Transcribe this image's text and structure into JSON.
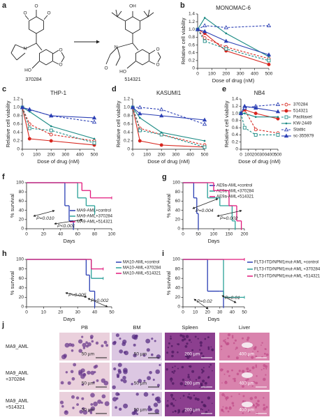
{
  "structures": {
    "panel": "a",
    "molecules": [
      {
        "label": "370284",
        "atoms": [
          "O",
          "O",
          "O",
          "N",
          "HO",
          "O",
          "O"
        ]
      },
      {
        "label": "514321",
        "atoms": [
          "OH",
          "N",
          "O",
          "HO",
          "O",
          "O"
        ]
      }
    ]
  },
  "chart_data": [
    {
      "type": "line",
      "panel": "b",
      "title": "MONOMAC-6",
      "xlabel": "Dose of drug (nM)",
      "ylabel": "Relative cell viability",
      "x": [
        0,
        50,
        200,
        500
      ],
      "xlim": [
        0,
        500
      ],
      "xticks": [
        0,
        100,
        200,
        300,
        400,
        500
      ],
      "ylim": [
        0,
        1.4
      ],
      "yticks": [
        0,
        0.2,
        0.4,
        0.6,
        0.8,
        {
          "value": 1,
          "label": "1.0"
        },
        1.2,
        1.4
      ],
      "series": [
        {
          "color": "#d7261e",
          "linestyle": "dashed",
          "marker": "circle",
          "filled": false,
          "values": [
            1.0,
            0.78,
            0.55,
            0.25
          ]
        },
        {
          "color": "#d7261e",
          "linestyle": "solid",
          "marker": "circle",
          "filled": true,
          "values": [
            1.0,
            0.9,
            0.45,
            0.1
          ]
        },
        {
          "color": "#1b8a84",
          "linestyle": "dashed",
          "marker": "square",
          "filled": false,
          "values": [
            1.0,
            0.7,
            0.5,
            0.2
          ]
        },
        {
          "color": "#1b8a84",
          "linestyle": "solid",
          "marker": "none",
          "filled": true,
          "values": [
            1.0,
            1.3,
            0.9,
            0.3
          ]
        },
        {
          "color": "#2b3fb4",
          "linestyle": "dashed",
          "marker": "triangle",
          "filled": false,
          "values": [
            1.0,
            1.1,
            1.05,
            1.1
          ]
        },
        {
          "color": "#2b3fb4",
          "linestyle": "solid",
          "marker": "triangle",
          "filled": true,
          "values": [
            1.0,
            0.95,
            0.7,
            0.35
          ]
        }
      ]
    },
    {
      "type": "line",
      "panel": "c",
      "title": "THP-1",
      "xlabel": "Dose of drug (nM)",
      "ylabel": "Relative cell viability",
      "x": [
        0,
        50,
        200,
        500
      ],
      "xlim": [
        0,
        500
      ],
      "xticks": [
        0,
        100,
        200,
        300,
        400,
        500
      ],
      "ylim": [
        0,
        1.2
      ],
      "yticks": [
        0,
        0.2,
        0.4,
        0.6,
        0.8,
        {
          "value": 1,
          "label": "1.0"
        },
        1.2
      ],
      "series": [
        {
          "color": "#d7261e",
          "linestyle": "dashed",
          "marker": "circle",
          "filled": false,
          "values": [
            1.0,
            0.6,
            0.35,
            0.2
          ]
        },
        {
          "color": "#d7261e",
          "linestyle": "solid",
          "marker": "circle",
          "filled": true,
          "values": [
            1.0,
            0.25,
            0.2,
            0.1
          ]
        },
        {
          "color": "#1b8a84",
          "linestyle": "dashed",
          "marker": "square",
          "filled": false,
          "values": [
            1.0,
            0.5,
            0.45,
            0.15
          ]
        },
        {
          "color": "#1b8a84",
          "linestyle": "solid",
          "marker": "none",
          "filled": true,
          "values": [
            1.0,
            0.9,
            0.55,
            0.25
          ]
        },
        {
          "color": "#2b3fb4",
          "linestyle": "dashed",
          "marker": "triangle",
          "filled": false,
          "values": [
            1.0,
            0.95,
            0.8,
            0.65
          ]
        },
        {
          "color": "#2b3fb4",
          "linestyle": "solid",
          "marker": "triangle",
          "filled": true,
          "values": [
            1.0,
            0.95,
            0.8,
            0.75
          ]
        }
      ]
    },
    {
      "type": "line",
      "panel": "d",
      "title": "KASUMI1",
      "xlabel": "Dose of drug (nM)",
      "ylabel": "Relative cell viability",
      "x": [
        0,
        50,
        200,
        500
      ],
      "xlim": [
        0,
        500
      ],
      "xticks": [
        0,
        100,
        200,
        300,
        400,
        500
      ],
      "ylim": [
        0,
        1.2
      ],
      "yticks": [
        0,
        0.2,
        0.4,
        0.6,
        0.8,
        {
          "value": 1,
          "label": "1.0"
        },
        1.2
      ],
      "series": [
        {
          "color": "#d7261e",
          "linestyle": "dashed",
          "marker": "circle",
          "filled": false,
          "values": [
            1.0,
            0.5,
            0.35,
            0.1
          ]
        },
        {
          "color": "#d7261e",
          "linestyle": "solid",
          "marker": "circle",
          "filled": true,
          "values": [
            1.0,
            0.2,
            0.1,
            0.05
          ]
        },
        {
          "color": "#1b8a84",
          "linestyle": "dashed",
          "marker": "square",
          "filled": false,
          "values": [
            1.0,
            0.45,
            0.35,
            0.05
          ]
        },
        {
          "color": "#1b8a84",
          "linestyle": "solid",
          "marker": "none",
          "filled": true,
          "values": [
            1.0,
            0.75,
            0.4,
            0.2
          ]
        },
        {
          "color": "#2b3fb4",
          "linestyle": "dashed",
          "marker": "triangle",
          "filled": false,
          "values": [
            1.0,
            1.0,
            0.95,
            0.6
          ]
        },
        {
          "color": "#2b3fb4",
          "linestyle": "solid",
          "marker": "triangle",
          "filled": true,
          "values": [
            1.0,
            0.85,
            0.8,
            0.7
          ]
        }
      ]
    },
    {
      "type": "line",
      "panel": "e",
      "title": "NB4",
      "xlabel": "Dose of drug (nM)",
      "ylabel": "Relative cell viability",
      "x": [
        0,
        50,
        200,
        500
      ],
      "xlim": [
        0,
        500
      ],
      "xticks": [
        0,
        100,
        200,
        300,
        400,
        500
      ],
      "ylim": [
        0,
        1.4
      ],
      "yticks": [
        0,
        0.2,
        0.4,
        0.6,
        0.8,
        {
          "value": 1,
          "label": "1.0"
        },
        1.2,
        1.4
      ],
      "legend": "right",
      "series": [
        {
          "name": "370284",
          "color": "#d7261e",
          "linestyle": "dashed",
          "marker": "circle",
          "filled": false,
          "values": [
            1.0,
            1.1,
            0.55,
            0.45
          ]
        },
        {
          "name": "514321",
          "color": "#d7261e",
          "linestyle": "solid",
          "marker": "circle",
          "filled": true,
          "values": [
            1.0,
            1.1,
            1.0,
            0.85
          ]
        },
        {
          "name": "Paclitaxel",
          "color": "#1b8a84",
          "linestyle": "dashed",
          "marker": "square",
          "filled": false,
          "values": [
            1.0,
            0.6,
            0.4,
            0.4
          ]
        },
        {
          "name": "KW-2449",
          "color": "#1b8a84",
          "linestyle": "solid",
          "marker": "none",
          "filled": true,
          "values": [
            1.0,
            1.0,
            0.9,
            0.9
          ]
        },
        {
          "name": "Stattic",
          "color": "#2b3fb4",
          "linestyle": "dashed",
          "marker": "triangle",
          "filled": false,
          "values": [
            1.0,
            1.15,
            1.2,
            1.25
          ]
        },
        {
          "name": "sc-355979",
          "color": "#2b3fb4",
          "linestyle": "solid",
          "marker": "triangle",
          "filled": true,
          "values": [
            1.0,
            1.2,
            1.15,
            1.05
          ]
        }
      ]
    },
    {
      "type": "step",
      "panel": "f",
      "xlabel": "Days",
      "ylabel": "% survival",
      "xlim": [
        0,
        100
      ],
      "xticks": [
        0,
        20,
        40,
        60,
        80,
        100
      ],
      "ylim": [
        0,
        100
      ],
      "yticks": [
        0,
        20,
        40,
        60,
        80,
        100
      ],
      "annotations": [
        "P=0.010",
        "P<0.001"
      ],
      "series": [
        {
          "name": "MA9-AML+control",
          "color": "#2b3fb4",
          "x": [
            0,
            45,
            50,
            55
          ],
          "values": [
            100,
            50,
            17,
            0
          ]
        },
        {
          "name": "MA9-AML+370284",
          "color": "#2aa198",
          "x": [
            0,
            60,
            70,
            80
          ],
          "values": [
            100,
            67,
            50,
            33
          ]
        },
        {
          "name": "MA9-AML+514321",
          "color": "#e2197c",
          "x": [
            0,
            65,
            75,
            100
          ],
          "values": [
            100,
            83,
            67,
            67
          ]
        }
      ]
    },
    {
      "type": "step",
      "panel": "g",
      "xlabel": "Days",
      "ylabel": "% survival",
      "xlim": [
        0,
        200
      ],
      "xticks": [
        0,
        50,
        100,
        150,
        200
      ],
      "ylim": [
        0,
        100
      ],
      "yticks": [
        0,
        20,
        40,
        60,
        80,
        100
      ],
      "annotations": [
        "P=0.004",
        "P=0.002"
      ],
      "series": [
        {
          "name": "AE9a-AML+control",
          "color": "#2b3fb4",
          "x": [
            0,
            35,
            45,
            50
          ],
          "values": [
            100,
            67,
            33,
            0
          ]
        },
        {
          "name": "AE9a-AML+370284",
          "color": "#2aa198",
          "x": [
            0,
            80,
            120,
            160,
            170
          ],
          "values": [
            100,
            67,
            50,
            17,
            0
          ]
        },
        {
          "name": "AE9a-AML+514321",
          "color": "#e2197c",
          "x": [
            0,
            100,
            150,
            175,
            190
          ],
          "values": [
            100,
            83,
            50,
            17,
            0
          ]
        }
      ]
    },
    {
      "type": "step",
      "panel": "h",
      "xlabel": "Days",
      "ylabel": "% survival",
      "xlim": [
        0,
        50
      ],
      "xticks": [
        0,
        10,
        20,
        30,
        40,
        50
      ],
      "ylim": [
        0,
        100
      ],
      "yticks": [
        0,
        20,
        40,
        60,
        80,
        100
      ],
      "annotations": [
        "P=0.005",
        "P=0.002"
      ],
      "series": [
        {
          "name": "MA10-AML+control",
          "color": "#2b3fb4",
          "x": [
            0,
            35,
            37,
            40
          ],
          "values": [
            100,
            67,
            33,
            0
          ]
        },
        {
          "name": "MA10-AML+370284",
          "color": "#2aa198",
          "x": [
            0,
            38,
            45
          ],
          "values": [
            100,
            60,
            60
          ]
        },
        {
          "name": "MA10-AML+514321",
          "color": "#e2197c",
          "x": [
            0,
            38,
            45
          ],
          "values": [
            100,
            80,
            80
          ]
        }
      ]
    },
    {
      "type": "step",
      "panel": "i",
      "xlabel": "Days",
      "ylabel": "% survival",
      "xlim": [
        0,
        50
      ],
      "xticks": [
        0,
        10,
        20,
        30,
        40,
        50
      ],
      "ylim": [
        0,
        100
      ],
      "yticks": [
        0,
        20,
        40,
        60,
        80,
        100
      ],
      "annotations": [
        "P=0.02",
        "P=0.01"
      ],
      "series": [
        {
          "name": "FLT3-ITD/NPM1mut-AML +control",
          "color": "#2b3fb4",
          "x": [
            0,
            20,
            30,
            33
          ],
          "values": [
            100,
            33,
            33,
            0
          ]
        },
        {
          "name": "FLT3-ITD/NPM1mut-AML +370284",
          "color": "#2aa198",
          "x": [
            0,
            33,
            50
          ],
          "values": [
            100,
            20,
            20
          ]
        },
        {
          "name": "FLT3-ITD/NPM1mut-AML +514321",
          "color": "#e2197c",
          "x": [
            0,
            50
          ],
          "values": [
            100,
            100
          ]
        }
      ]
    }
  ],
  "histology": {
    "panel": "j",
    "columns": [
      "PB",
      "BM",
      "Spleen",
      "Liver"
    ],
    "rows": [
      {
        "label": [
          "MA9_AML"
        ],
        "scales": [
          "50 µm",
          "50 µm",
          "200 µm",
          "400 µm"
        ]
      },
      {
        "label": [
          "MA9_AML",
          "+370284"
        ],
        "scales": [
          "50 µm",
          "50 µm",
          "200 µm",
          "400 µm"
        ]
      },
      {
        "label": [
          "MA9_AML",
          "+514321"
        ],
        "scales": [
          "50 µm",
          "50 µm",
          "200 µm",
          "400 µm"
        ]
      }
    ]
  }
}
